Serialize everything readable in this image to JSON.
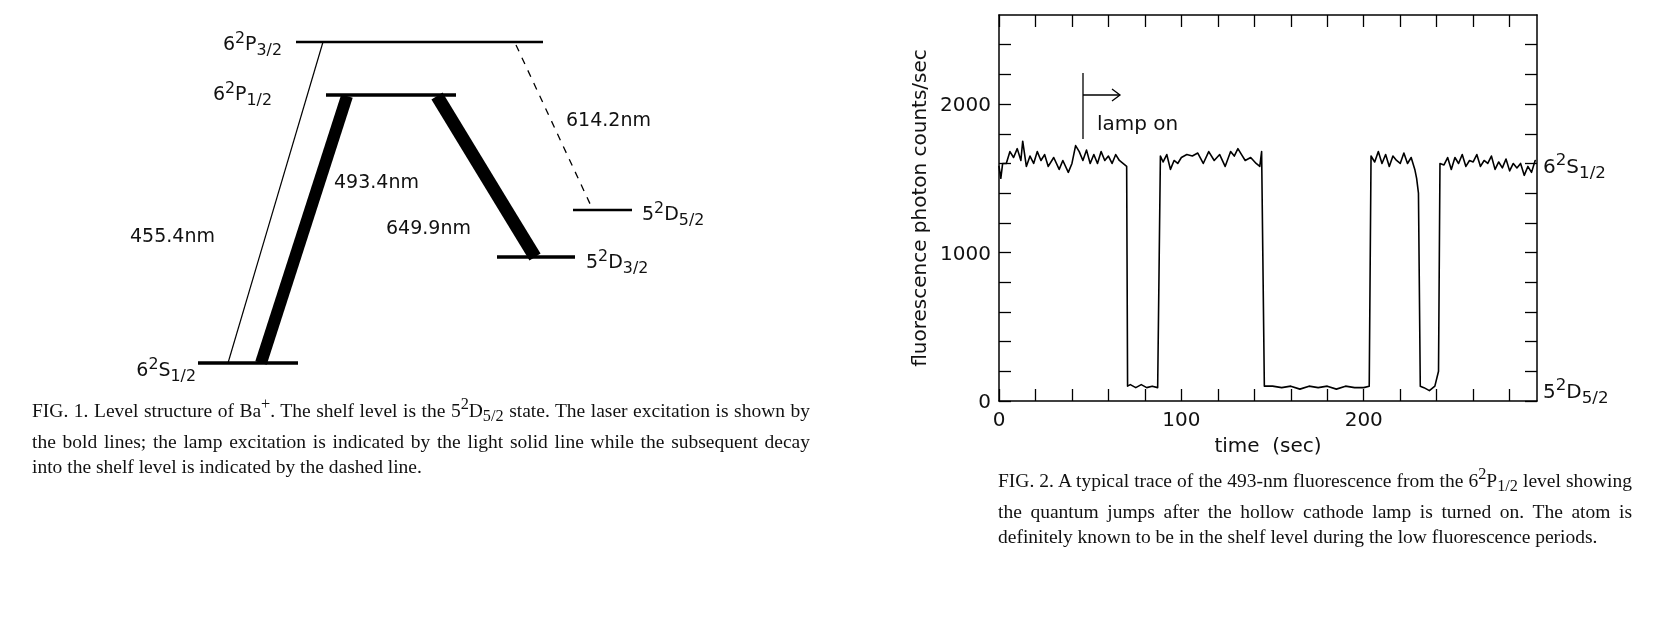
{
  "chart_data": [
    {
      "type": "other",
      "annotations": [
        "6$^{2}$P$_{3/2}$",
        "6$^{2}$P$_{1/2}$",
        "6$^{2}$S$_{1/2}$",
        "5$^{2}$D$_{5/2}$",
        "5$^{2}$D$_{3/2}$",
        "614.2nm",
        "493.4nm",
        "649.9nm",
        "455.4nm",
        "FIG. 1.  Level structure of Ba$^{+}$.  The shelf level is the 5$^{2}$D$_{5/2}$ state.  The laser excitation is shown by the bold lines; the lamp excitation is indicated by the light solid line while the subsequent decay into the shelf level is indicated by the dashed line."
      ]
    },
    {
      "type": "line",
      "xlabel": "time  (sec)",
      "ylabel": "fluorescence photon counts/sec",
      "xlim": [
        0,
        295
      ],
      "xticks": [
        0,
        {
          "value": 20,
          "label": null
        },
        {
          "value": 40,
          "label": null
        },
        {
          "value": 60,
          "label": null
        },
        {
          "value": 80,
          "label": null
        },
        100,
        {
          "value": 120,
          "label": null
        },
        {
          "value": 140,
          "label": null
        },
        {
          "value": 160,
          "label": null
        },
        {
          "value": 180,
          "label": null
        },
        200,
        {
          "value": 220,
          "label": null
        },
        {
          "value": 240,
          "label": null
        },
        {
          "value": 260,
          "label": null
        },
        {
          "value": 280,
          "label": null
        }
      ],
      "ylim": [
        0,
        2600
      ],
      "yticks": [
        0,
        {
          "value": 200,
          "label": null
        },
        {
          "value": 400,
          "label": null
        },
        {
          "value": 600,
          "label": null
        },
        {
          "value": 800,
          "label": null
        },
        1000,
        {
          "value": 1200,
          "label": null
        },
        {
          "value": 1400,
          "label": null
        },
        {
          "value": 1600,
          "label": null
        },
        {
          "value": 1800,
          "label": null
        },
        2000,
        {
          "value": 2200,
          "label": null
        },
        {
          "value": 2400,
          "label": null
        }
      ],
      "grid": false,
      "marker": "none",
      "line_style": "solid",
      "annotations": [
        "lamp on",
        "6$^{2}$S$_{1/2}$",
        "5$^{2}$D$_{5/2}$",
        "FIG. 2.  A typical trace of the 493-nm fluorescence from the 6$^{2}$P$_{1/2}$ level showing the quantum jumps after the hollow cathode lamp is turned on.  The atom is definitely known to be in the shelf level during the low fluorescence periods."
      ],
      "series": [
        {
          "color": "#000000",
          "x": [
            0,
            1,
            2,
            4,
            6,
            8,
            10,
            12,
            13,
            15,
            17,
            19,
            21,
            23,
            25,
            27,
            30,
            33,
            35,
            38,
            40,
            42,
            44,
            46,
            48,
            50,
            52,
            54,
            56,
            58,
            60,
            62,
            64,
            66,
            68,
            70,
            70.5,
            72,
            75,
            78,
            81,
            84,
            87,
            88.5,
            90,
            92,
            94,
            96,
            98,
            100,
            103,
            106,
            109,
            112,
            115,
            118,
            121,
            124,
            127,
            129,
            131,
            133,
            135,
            138,
            141,
            143,
            144,
            145.5,
            150,
            155,
            160,
            165,
            170,
            175,
            180,
            185,
            190,
            195,
            200,
            203,
            204,
            206,
            208,
            210,
            212,
            214,
            216,
            218,
            220,
            222,
            224,
            226,
            228,
            229,
            230,
            231,
            233,
            236,
            239,
            241,
            241.8,
            244,
            246,
            248,
            250,
            252,
            254,
            256,
            258,
            260,
            262,
            264,
            266,
            268,
            270,
            272,
            274,
            276,
            278,
            280,
            282,
            284,
            286,
            288,
            290,
            292,
            294
          ],
          "values": [
            1580,
            1500,
            1600,
            1600,
            1680,
            1640,
            1700,
            1620,
            1750,
            1580,
            1650,
            1600,
            1680,
            1620,
            1660,
            1580,
            1640,
            1560,
            1620,
            1540,
            1600,
            1720,
            1680,
            1620,
            1690,
            1600,
            1660,
            1600,
            1680,
            1620,
            1650,
            1600,
            1660,
            1620,
            1600,
            1580,
            100,
            110,
            90,
            110,
            90,
            100,
            90,
            1650,
            1610,
            1660,
            1560,
            1620,
            1600,
            1640,
            1660,
            1650,
            1670,
            1600,
            1680,
            1620,
            1660,
            1580,
            1680,
            1650,
            1700,
            1660,
            1620,
            1640,
            1600,
            1580,
            1680,
            100,
            100,
            90,
            100,
            80,
            100,
            90,
            100,
            80,
            100,
            90,
            90,
            100,
            1650,
            1610,
            1680,
            1600,
            1660,
            1580,
            1650,
            1620,
            1600,
            1670,
            1600,
            1640,
            1560,
            1500,
            1400,
            100,
            90,
            70,
            100,
            200,
            1600,
            1590,
            1640,
            1560,
            1640,
            1600,
            1660,
            1580,
            1620,
            1610,
            1660,
            1580,
            1620,
            1600,
            1650,
            1560,
            1610,
            1570,
            1630,
            1550,
            1600,
            1570,
            1600,
            1520,
            1580,
            1540,
            1620
          ]
        }
      ]
    }
  ]
}
